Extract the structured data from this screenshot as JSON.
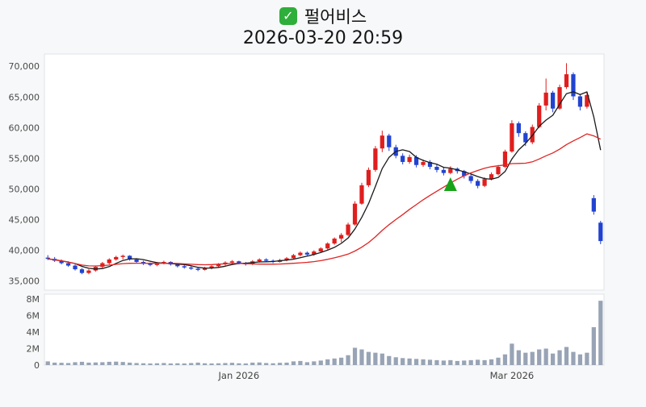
{
  "title": {
    "check_icon": "✓",
    "stock_name": "펄어비스"
  },
  "timestamp": "2026-03-20 20:59",
  "chart_data": {
    "type": "candlestick",
    "title": "펄어비스",
    "subtitle": "2026-03-20 20:59",
    "price_axis": {
      "min": 33500,
      "max": 72000,
      "ticks": [
        {
          "v": 70000,
          "label": "70,000"
        },
        {
          "v": 65000,
          "label": "65,000"
        },
        {
          "v": 60000,
          "label": "60,000"
        },
        {
          "v": 55000,
          "label": "55,000"
        },
        {
          "v": 50000,
          "label": "50,000"
        },
        {
          "v": 45000,
          "label": "45,000"
        },
        {
          "v": 40000,
          "label": "40,000"
        },
        {
          "v": 35000,
          "label": "35,000"
        }
      ]
    },
    "volume_axis": {
      "min": 0,
      "max": 8.6,
      "unit": "millions",
      "ticks": [
        {
          "v": 8,
          "label": "8M"
        },
        {
          "v": 6,
          "label": "6M"
        },
        {
          "v": 4,
          "label": "4M"
        },
        {
          "v": 2,
          "label": "2M"
        },
        {
          "v": 0,
          "label": "0"
        }
      ]
    },
    "x_ticks": [
      {
        "index": 28,
        "label": "Jan 2026"
      },
      {
        "index": 68,
        "label": "Mar 2026"
      }
    ],
    "colors": {
      "up": "#e01e1e",
      "down": "#2143d1",
      "volume_bar": "#98a4b5",
      "ma_fast": "#1a1a1a",
      "ma_slow": "#e02424",
      "marker": "#17a317",
      "panel_bg": "#ffffff",
      "panel_border": "#dfe3e8"
    },
    "moving_averages": [
      {
        "window": 5,
        "color": "#1a1a1a"
      },
      {
        "window": 20,
        "color": "#e02424"
      }
    ],
    "marker": {
      "index": 59,
      "price": 51900,
      "type": "up-triangle",
      "color": "#17a317"
    },
    "candles_format": [
      "open",
      "high",
      "low",
      "close",
      "volume_millions"
    ],
    "candles": [
      [
        38800,
        39200,
        38400,
        38600,
        0.45
      ],
      [
        38600,
        38900,
        38100,
        38300,
        0.3
      ],
      [
        38300,
        38500,
        37700,
        37900,
        0.28
      ],
      [
        37900,
        38200,
        37300,
        37500,
        0.25
      ],
      [
        37500,
        37700,
        36700,
        36900,
        0.35
      ],
      [
        36900,
        37100,
        36100,
        36300,
        0.4
      ],
      [
        36300,
        36900,
        36100,
        36700,
        0.3
      ],
      [
        36700,
        37500,
        36500,
        37300,
        0.32
      ],
      [
        37300,
        38100,
        37100,
        37900,
        0.35
      ],
      [
        37900,
        38700,
        37700,
        38500,
        0.4
      ],
      [
        38500,
        39100,
        38300,
        38900,
        0.42
      ],
      [
        38900,
        39300,
        38500,
        39100,
        0.38
      ],
      [
        39100,
        39200,
        38300,
        38500,
        0.3
      ],
      [
        38500,
        38700,
        37900,
        38100,
        0.25
      ],
      [
        38100,
        38300,
        37600,
        37800,
        0.22
      ],
      [
        37800,
        38000,
        37400,
        37600,
        0.2
      ],
      [
        37600,
        38100,
        37400,
        37900,
        0.22
      ],
      [
        37900,
        38300,
        37700,
        38100,
        0.25
      ],
      [
        38100,
        38200,
        37500,
        37700,
        0.2
      ],
      [
        37700,
        37900,
        37200,
        37400,
        0.22
      ],
      [
        37400,
        37600,
        37000,
        37200,
        0.2
      ],
      [
        37200,
        37400,
        36800,
        37000,
        0.25
      ],
      [
        37000,
        37200,
        36600,
        36800,
        0.3
      ],
      [
        36800,
        37300,
        36700,
        37100,
        0.22
      ],
      [
        37100,
        37600,
        36900,
        37400,
        0.2
      ],
      [
        37400,
        37900,
        37200,
        37700,
        0.22
      ],
      [
        37700,
        38200,
        37500,
        38000,
        0.25
      ],
      [
        38000,
        38400,
        37800,
        38200,
        0.28
      ],
      [
        38200,
        38300,
        37700,
        37900,
        0.22
      ],
      [
        37900,
        38100,
        37500,
        37700,
        0.2
      ],
      [
        37700,
        38400,
        37600,
        38200,
        0.3
      ],
      [
        38200,
        38700,
        38000,
        38500,
        0.32
      ],
      [
        38500,
        38700,
        38100,
        38300,
        0.25
      ],
      [
        38300,
        38500,
        37900,
        38100,
        0.22
      ],
      [
        38100,
        38600,
        38000,
        38400,
        0.28
      ],
      [
        38400,
        38900,
        38200,
        38700,
        0.3
      ],
      [
        38700,
        39400,
        38500,
        39200,
        0.45
      ],
      [
        39200,
        39800,
        39000,
        39600,
        0.5
      ],
      [
        39600,
        39800,
        39100,
        39300,
        0.35
      ],
      [
        39300,
        40000,
        39100,
        39800,
        0.45
      ],
      [
        39800,
        40500,
        39600,
        40300,
        0.55
      ],
      [
        40300,
        41300,
        40100,
        41100,
        0.7
      ],
      [
        41100,
        42100,
        40900,
        41900,
        0.8
      ],
      [
        41900,
        42800,
        41300,
        42500,
        0.9
      ],
      [
        42500,
        44500,
        42300,
        44200,
        1.2
      ],
      [
        44200,
        48000,
        44000,
        47600,
        2.1
      ],
      [
        47600,
        51000,
        47400,
        50600,
        1.9
      ],
      [
        50600,
        53500,
        50300,
        53100,
        1.6
      ],
      [
        53100,
        57000,
        52800,
        56600,
        1.5
      ],
      [
        56600,
        59500,
        56000,
        58700,
        1.4
      ],
      [
        58700,
        59000,
        56200,
        56800,
        1.1
      ],
      [
        56800,
        57200,
        55000,
        55400,
        0.95
      ],
      [
        55400,
        55800,
        54000,
        54400,
        0.85
      ],
      [
        54400,
        55600,
        54100,
        55200,
        0.8
      ],
      [
        55200,
        55500,
        53500,
        53900,
        0.75
      ],
      [
        53900,
        54800,
        53600,
        54400,
        0.7
      ],
      [
        54400,
        54700,
        53200,
        53600,
        0.65
      ],
      [
        53600,
        54000,
        52700,
        53100,
        0.6
      ],
      [
        53100,
        53500,
        52200,
        52600,
        0.55
      ],
      [
        52600,
        53700,
        52400,
        53300,
        0.6
      ],
      [
        53300,
        53500,
        52500,
        52900,
        0.5
      ],
      [
        52900,
        53100,
        51700,
        52100,
        0.55
      ],
      [
        52100,
        52400,
        50900,
        51300,
        0.6
      ],
      [
        51300,
        51600,
        50100,
        50500,
        0.65
      ],
      [
        50500,
        51900,
        50300,
        51600,
        0.6
      ],
      [
        51600,
        52700,
        51400,
        52400,
        0.7
      ],
      [
        52400,
        53900,
        52200,
        53600,
        0.9
      ],
      [
        53600,
        56400,
        53400,
        56100,
        1.3
      ],
      [
        56100,
        61200,
        55900,
        60700,
        2.6
      ],
      [
        60700,
        61000,
        58500,
        59100,
        1.8
      ],
      [
        59100,
        59400,
        57000,
        57600,
        1.5
      ],
      [
        57600,
        60500,
        57300,
        60100,
        1.6
      ],
      [
        60100,
        64000,
        59900,
        63600,
        1.9
      ],
      [
        63600,
        68000,
        62800,
        65700,
        2.0
      ],
      [
        65700,
        66000,
        62500,
        63100,
        1.4
      ],
      [
        63100,
        67000,
        62900,
        66600,
        1.8
      ],
      [
        66600,
        70500,
        66300,
        68700,
        2.2
      ],
      [
        68700,
        69000,
        64500,
        65100,
        1.6
      ],
      [
        65100,
        65500,
        62800,
        63400,
        1.3
      ],
      [
        63400,
        65800,
        63100,
        65300,
        1.5
      ],
      [
        48500,
        49000,
        45800,
        46300,
        4.6
      ],
      [
        44500,
        44800,
        41000,
        41500,
        7.8
      ]
    ]
  }
}
